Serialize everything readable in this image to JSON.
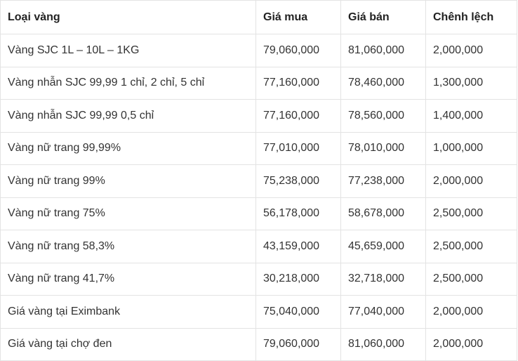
{
  "table": {
    "headers": [
      "Loại vàng",
      "Giá mua",
      "Giá bán",
      "Chênh lệch"
    ],
    "rows": [
      [
        "Vàng SJC 1L – 10L – 1KG",
        "79,060,000",
        "81,060,000",
        "2,000,000"
      ],
      [
        "Vàng nhẫn SJC 99,99 1 chỉ, 2 chỉ, 5 chỉ",
        "77,160,000",
        "78,460,000",
        "1,300,000"
      ],
      [
        "Vàng nhẫn SJC 99,99 0,5 chỉ",
        "77,160,000",
        "78,560,000",
        "1,400,000"
      ],
      [
        "Vàng nữ trang 99,99%",
        "77,010,000",
        "78,010,000",
        "1,000,000"
      ],
      [
        "Vàng nữ trang 99%",
        "75,238,000",
        "77,238,000",
        "2,000,000"
      ],
      [
        "Vàng nữ trang 75%",
        "56,178,000",
        "58,678,000",
        "2,500,000"
      ],
      [
        "Vàng nữ trang 58,3%",
        "43,159,000",
        "45,659,000",
        "2,500,000"
      ],
      [
        "Vàng nữ trang 41,7%",
        "30,218,000",
        "32,718,000",
        "2,500,000"
      ],
      [
        "Giá vàng tại Eximbank",
        "75,040,000",
        "77,040,000",
        "2,000,000"
      ],
      [
        "Giá vàng tại chợ đen",
        "79,060,000",
        "81,060,000",
        "2,000,000"
      ]
    ]
  },
  "colors": {
    "border": "#e3e3e3",
    "text": "#333333",
    "header_text": "#222222",
    "background": "#ffffff"
  }
}
